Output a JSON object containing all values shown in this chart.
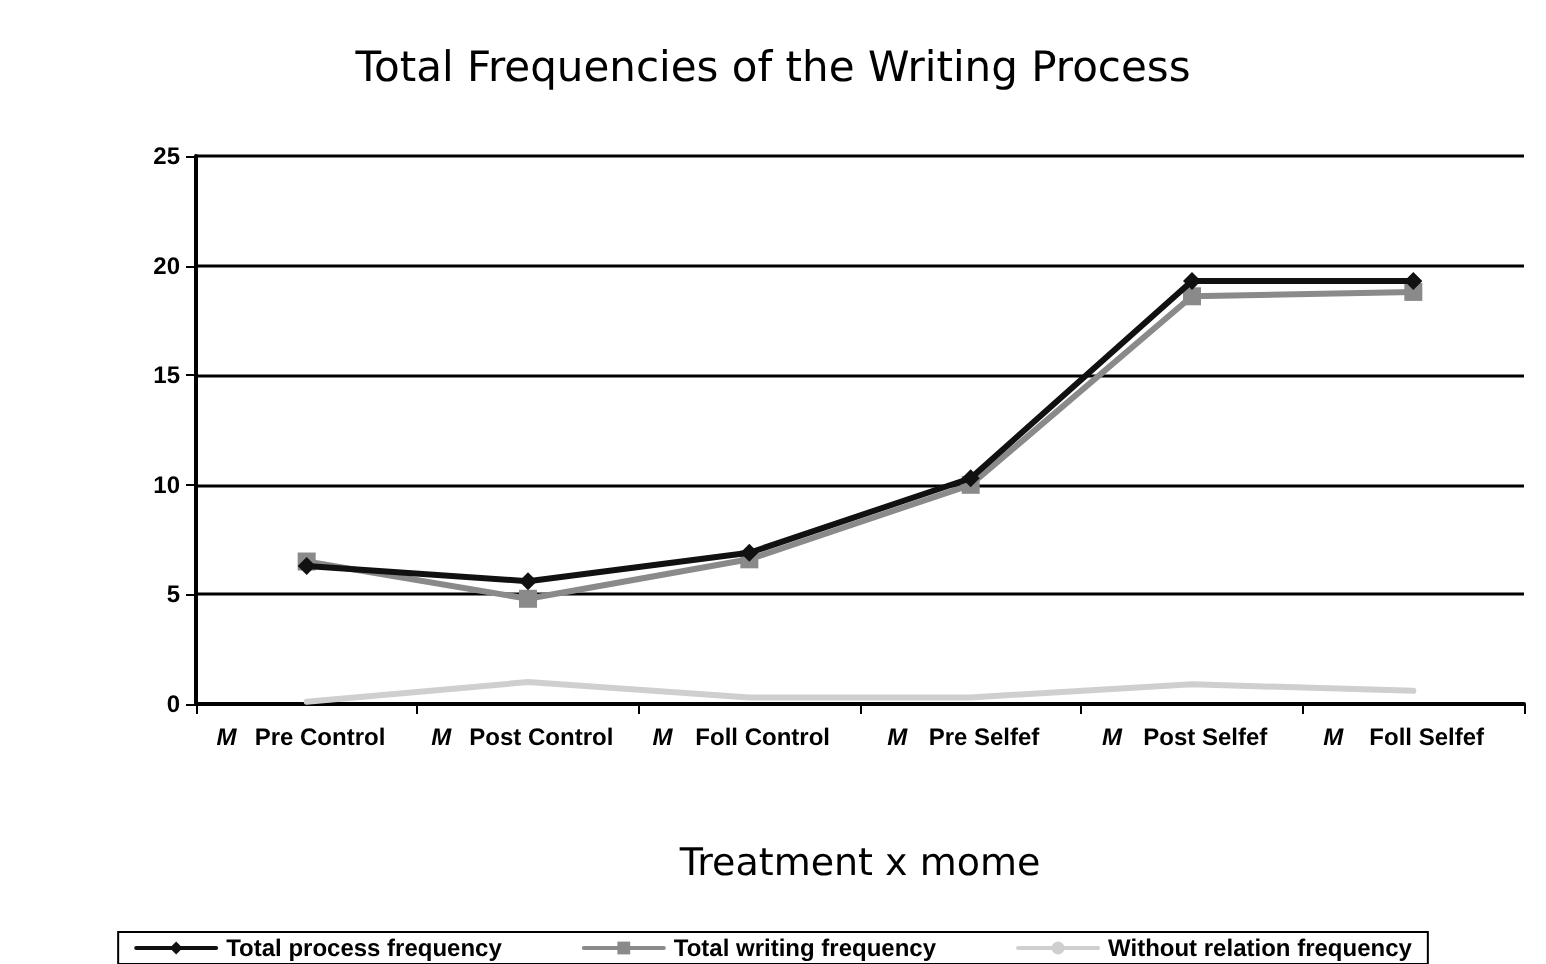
{
  "chart_data": {
    "type": "line",
    "title": "Total Frequencies of the Writing Process",
    "xlabel": "Treatment x mome",
    "categories": [
      "M Pre Control",
      "M Post Control",
      "M Foll Control",
      "M Pre Selfef",
      "M Post Selfef",
      "M Foll Selfef"
    ],
    "series": [
      {
        "name": "Total process frequency",
        "color": "#111111",
        "marker": "diamond",
        "values": [
          6.3,
          5.6,
          6.9,
          10.3,
          19.3,
          19.3
        ]
      },
      {
        "name": "Total writing frequency",
        "color": "#8a8a8a",
        "marker": "square",
        "values": [
          6.5,
          4.8,
          6.6,
          10.0,
          18.6,
          18.8
        ]
      },
      {
        "name": "Without relation frequency",
        "color": "#cfcfcf",
        "marker": "none",
        "values": [
          0.1,
          1.0,
          0.3,
          0.3,
          0.9,
          0.6
        ]
      }
    ],
    "ylim": [
      0,
      25
    ],
    "yticks": [
      0,
      5,
      10,
      15,
      20,
      25
    ],
    "grid": "y",
    "legend": "bottom",
    "line_style": "solid"
  }
}
